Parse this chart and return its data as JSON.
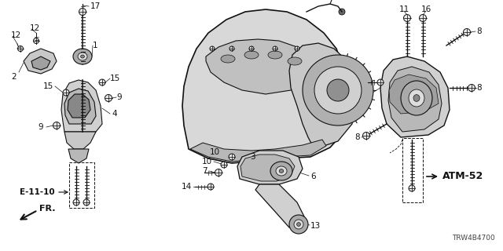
{
  "bg_color": "#ffffff",
  "diagram_code": "TRW4B4700",
  "ref_e": "E-11-10",
  "ref_atm": "ATM-52",
  "fr_label": "FR.",
  "lw": 0.6,
  "black": "#111111",
  "gray": "#777777",
  "lightgray": "#bbbbbb",
  "darkgray": "#444444",
  "fig_w": 6.4,
  "fig_h": 3.2,
  "dpi": 100,
  "xlim": [
    0,
    640
  ],
  "ylim": [
    0,
    320
  ],
  "label_fs": 7.5,
  "bold_fs": 8.5,
  "code_fs": 6.5
}
